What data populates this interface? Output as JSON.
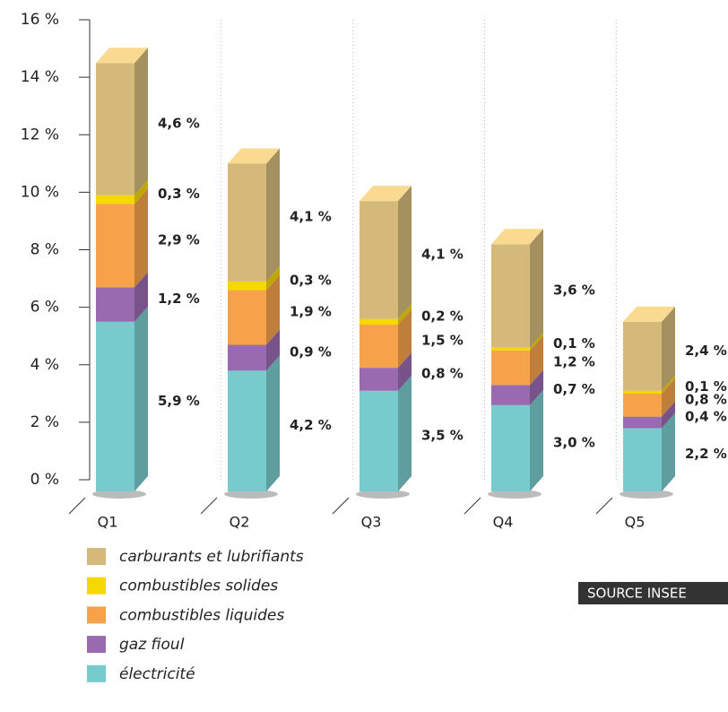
{
  "chart_data": {
    "type": "bar",
    "stacked": true,
    "categories": [
      "Q1",
      "Q2",
      "Q3",
      "Q4",
      "Q5"
    ],
    "series": [
      {
        "name": "électricité",
        "color": "#78cbcc",
        "values": [
          5.9,
          4.2,
          3.5,
          3.0,
          2.2
        ],
        "value_labels": [
          "5,9 %",
          "4,2 %",
          "3,5 %",
          "3,0 %",
          "2,2 %"
        ]
      },
      {
        "name": "gaz fioul",
        "color": "#9a6ab0",
        "values": [
          1.2,
          0.9,
          0.8,
          0.7,
          0.4
        ],
        "value_labels": [
          "1,2 %",
          "0,9 %",
          "0,8 %",
          "0,7 %",
          "0,4 %"
        ]
      },
      {
        "name": "combustibles liquides",
        "color": "#f5a24a",
        "values": [
          2.9,
          1.9,
          1.5,
          1.2,
          0.8
        ],
        "value_labels": [
          "2,9 %",
          "1,9 %",
          "1,5 %",
          "1,2 %",
          "0,8 %"
        ]
      },
      {
        "name": "combustibles solides",
        "color": "#f5d800",
        "values": [
          0.3,
          0.3,
          0.2,
          0.1,
          0.1
        ],
        "value_labels": [
          "0,3 %",
          "0,3 %",
          "0,2 %",
          "0,1 %",
          "0,1 %"
        ]
      },
      {
        "name": "carburants et lubrifiants",
        "color": "#d4b97a",
        "values": [
          4.6,
          4.1,
          4.1,
          3.6,
          2.4
        ],
        "value_labels": [
          "4,6 %",
          "4,1 %",
          "4,1 %",
          "3,6 %",
          "2,4 %"
        ]
      }
    ],
    "ylim": [
      0,
      16
    ],
    "yticks": [
      {
        "value": 0,
        "label": "0 %"
      },
      {
        "value": 2,
        "label": "2 %"
      },
      {
        "value": 4,
        "label": "4 %"
      },
      {
        "value": 6,
        "label": "6 %"
      },
      {
        "value": 8,
        "label": "8 %"
      },
      {
        "value": 10,
        "label": "10 %"
      },
      {
        "value": 12,
        "label": "12 %"
      },
      {
        "value": 14,
        "label": "14 %"
      },
      {
        "value": 16,
        "label": "16 %"
      }
    ],
    "source": "SOURCE INSEE"
  }
}
